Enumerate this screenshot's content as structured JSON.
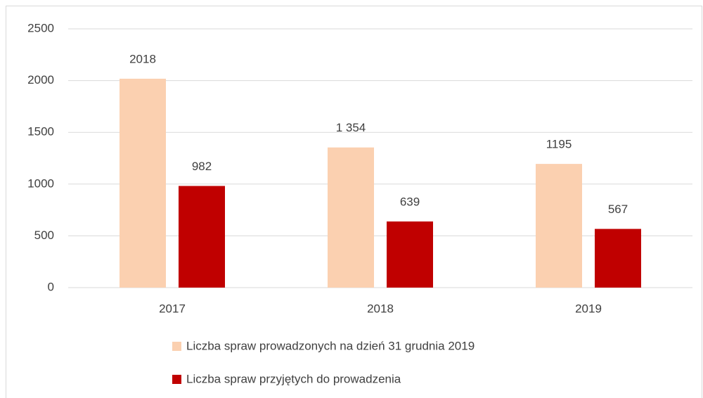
{
  "chart_data": {
    "type": "bar",
    "categories": [
      "2017",
      "2018",
      "2019"
    ],
    "series": [
      {
        "name": "Liczba spraw prowadzonych na dzień 31 grudnia 2019",
        "color": "#fbd0b0",
        "values": [
          2018,
          1354,
          1195
        ],
        "value_labels": [
          "2018",
          "1 354",
          "1195"
        ]
      },
      {
        "name": "Liczba spraw przyjętych do prowadzenia",
        "color": "#c00000",
        "values": [
          982,
          639,
          567
        ]
      }
    ],
    "ylim": [
      0,
      2500
    ],
    "yticks": [
      0,
      500,
      1000,
      1500,
      2000,
      2500
    ],
    "grid": true,
    "legend": "bottom"
  }
}
